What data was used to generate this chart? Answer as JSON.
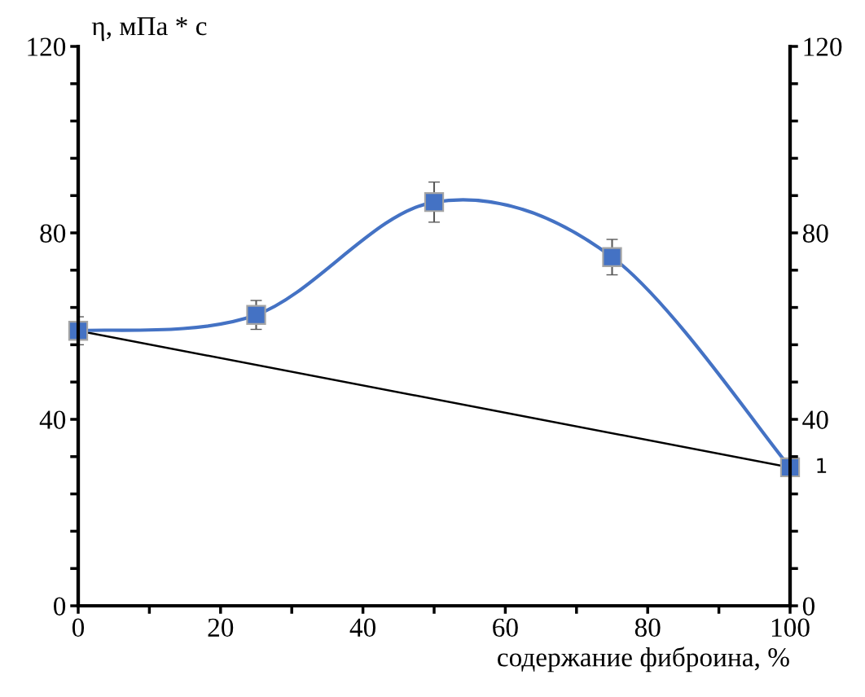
{
  "chart_data": {
    "type": "line",
    "ylabel": "η, мПа * с",
    "xlabel": "содержание фиброина, %",
    "x": [
      0,
      25,
      50,
      75,
      100
    ],
    "series": [
      {
        "color": "#4472c4",
        "values": [
          59,
          62.4,
          86.6,
          74.8,
          29.7
        ],
        "errors": [
          3,
          3.1,
          4.3,
          3.8,
          null
        ],
        "marker": "square"
      },
      {
        "color": "#000000",
        "x": [
          0,
          100
        ],
        "values": [
          59,
          29.7
        ],
        "marker": "none"
      }
    ],
    "annotations": [
      {
        "text": "1",
        "x": 100,
        "y": 29.7
      }
    ],
    "xlim": [
      0,
      100
    ],
    "xticks": [
      0,
      {
        "value": 10,
        "label": null
      },
      20,
      {
        "value": 30,
        "label": null
      },
      40,
      {
        "value": 50,
        "label": null
      },
      60,
      {
        "value": 70,
        "label": null
      },
      80,
      {
        "value": 90,
        "label": null
      },
      100
    ],
    "ylim": [
      0,
      120
    ],
    "yticks": [
      0,
      {
        "value": 8,
        "label": null
      },
      {
        "value": 16,
        "label": null
      },
      {
        "value": 24,
        "label": null
      },
      {
        "value": 32,
        "label": null
      },
      40,
      {
        "value": 48,
        "label": null
      },
      {
        "value": 56,
        "label": null
      },
      {
        "value": 64,
        "label": null
      },
      {
        "value": 72,
        "label": null
      },
      80,
      {
        "value": 88,
        "label": null
      },
      {
        "value": 96,
        "label": null
      },
      {
        "value": 104,
        "label": null
      },
      {
        "value": 112,
        "label": null
      },
      120
    ],
    "y2lim": [
      0,
      120
    ],
    "y2ticks": [
      0,
      {
        "value": 8,
        "label": null
      },
      {
        "value": 16,
        "label": null
      },
      {
        "value": 24,
        "label": null
      },
      {
        "value": 32,
        "label": null
      },
      40,
      {
        "value": 48,
        "label": null
      },
      {
        "value": 56,
        "label": null
      },
      {
        "value": 64,
        "label": null
      },
      {
        "value": 72,
        "label": null
      },
      80,
      {
        "value": 88,
        "label": null
      },
      {
        "value": 96,
        "label": null
      },
      {
        "value": 104,
        "label": null
      },
      {
        "value": 112,
        "label": null
      },
      120
    ],
    "grid": false,
    "legend": false
  }
}
